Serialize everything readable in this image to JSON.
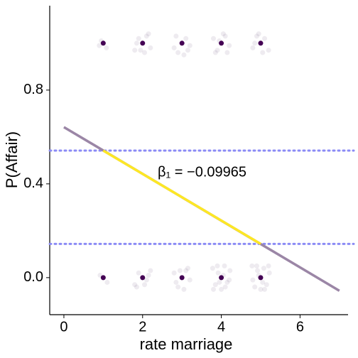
{
  "chart_data": {
    "type": "scatter",
    "xlabel": "rate marriage",
    "ylabel": "P(Affair)",
    "annotation": "β₁ = −0.09965",
    "xlim": [
      -0.36,
      7.22
    ],
    "ylim": [
      -0.158,
      1.16
    ],
    "xticks": [
      0,
      2,
      4,
      6
    ],
    "yticks": [
      {
        "value": 0,
        "label": "0.0"
      },
      {
        "value": 0.4,
        "label": "0.4"
      },
      {
        "value": 0.8,
        "label": "0.8"
      }
    ],
    "series": [
      {
        "color": "#5a3a6a",
        "opacity": 0.1,
        "x": [
          0.95,
          1.08,
          0.9,
          1.8,
          1.9,
          2.1,
          2.2,
          1.85,
          2.05,
          2.15,
          1.95,
          2.8,
          2.9,
          3.1,
          3.2,
          2.85,
          3.05,
          3.15,
          3.8,
          3.9,
          4.1,
          4.2,
          3.85,
          4.05,
          4.15,
          3.95,
          4.8,
          4.9,
          5.1,
          5.2,
          4.95,
          5.05,
          4.85,
          0.92,
          1.1,
          1.8,
          1.9,
          2.1,
          2.2,
          1.85,
          2.15,
          2.05,
          2.8,
          2.9,
          3.1,
          3.2,
          2.85,
          3.15,
          3.05,
          2.95,
          3.78,
          3.85,
          3.92,
          4.0,
          4.08,
          4.15,
          4.22,
          3.8,
          3.9,
          4.1,
          4.2,
          3.95,
          4.05,
          4.78,
          4.85,
          4.92,
          5.0,
          5.08,
          5.15,
          5.22,
          4.8,
          4.9,
          5.1,
          5.2,
          4.95,
          5.05
        ],
        "y": [
          1.01,
          0.98,
          0.99,
          0.97,
          1.02,
          1.03,
          0.98,
          1.0,
          0.96,
          1.04,
          0.97,
          0.98,
          0.96,
          1.02,
          0.99,
          1.03,
          0.95,
          0.97,
          1.02,
          0.97,
          1.03,
          0.99,
          0.96,
          1.04,
          0.96,
          1.01,
          0.98,
          1.03,
          1.02,
          0.97,
          1.04,
          0.96,
          1.0,
          0.01,
          -0.02,
          -0.03,
          0.02,
          -0.01,
          0.03,
          -0.04,
          0.01,
          -0.03,
          0.02,
          -0.04,
          0.03,
          -0.01,
          -0.02,
          0.04,
          -0.05,
          0.03,
          0.04,
          -0.03,
          0.02,
          -0.05,
          0.05,
          -0.02,
          0.03,
          -0.05,
          0.05,
          -0.04,
          -0.01,
          -0.02,
          0.01,
          0.05,
          -0.04,
          0.03,
          -0.05,
          0.04,
          -0.03,
          0.02,
          -0.01,
          0.05,
          -0.05,
          0.05,
          0.01,
          -0.02
        ]
      },
      {
        "color": "#440154",
        "opacity": 1,
        "x": [
          1,
          2,
          3,
          4,
          5,
          1,
          2,
          3,
          4,
          5
        ],
        "y": [
          1,
          1,
          1,
          1,
          1,
          0,
          0,
          0,
          0,
          0
        ]
      }
    ],
    "lines": [
      {
        "color": "#9b86a6",
        "x": [
          0,
          7
        ],
        "y": [
          0.642,
          -0.056
        ]
      },
      {
        "color": "#fde725",
        "x": [
          1,
          5
        ],
        "y": [
          0.542,
          0.144
        ]
      }
    ],
    "hlines": {
      "color": "#8b8bf5",
      "values": [
        0.542,
        0.144
      ]
    }
  }
}
